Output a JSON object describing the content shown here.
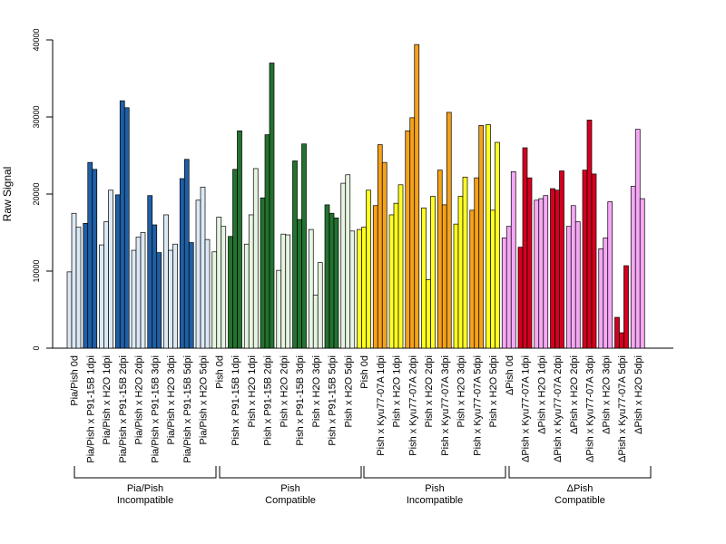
{
  "chart_data": {
    "type": "bar",
    "ylabel": "Raw Signal",
    "ylim": [
      0,
      40000
    ],
    "yticks": [
      "0",
      "10000",
      "20000",
      "30000",
      "40000"
    ],
    "categories": [
      "Pia/Pish 0d",
      "Pia/Pish x P91-15B 1dpi",
      "Pia/Pish x H2O 1dpi",
      "Pia/Pish x P91-15B 2dpi",
      "Pia/Pish x H2O 2dpi",
      "Pia/Pish x P91-15B 3dpi",
      "Pia/Pish x H2O 3dpi",
      "Pia/Pish x P91-15B 5dpi",
      "Pia/Pish x H2O 5dpi",
      "Pish 0d",
      "Pish x P91-15B 1dpi",
      "Pish x H2O 1dpi",
      "Pish x P91-15B 2dpi",
      "Pish x H2O 2dpi",
      "Pish x P91-15B 3dpi",
      "Pish x H2O 3dpi",
      "Pish x P91-15B 5dpi",
      "Pish x H2O 5dpi",
      "Pish 0d",
      "Pish x Kyu77-07A 1dpi",
      "Pish x H2O 1dpi",
      "Pish x Kyu77-07A 2dpi",
      "Pish x H2O 2dpi",
      "Pish x Kyu77-07A 3dpi",
      "Pish x H2O 3dpi",
      "Pish x Kyu77-07A 5dpi",
      "Pish x H2O 5dpi",
      "ΔPish 0d",
      "ΔPish x Kyu77-07A 1dpi",
      "ΔPish x H2O 1dpi",
      "ΔPish x Kyu77-07A 2dpi",
      "ΔPish x H2O 2dpi",
      "ΔPish x Kyu77-07A 3dpi",
      "ΔPish x H2O 3dpi",
      "ΔPish x Kyu77-07A 5dpi",
      "ΔPish x H2O 5dpi"
    ],
    "bar_colors": [
      "#dce9f5",
      "#1f5fa6",
      "#dce9f5",
      "#1f5fa6",
      "#dce9f5",
      "#1f5fa6",
      "#dce9f5",
      "#1f5fa6",
      "#dce9f5",
      "#e6f4e1",
      "#23722f",
      "#e6f4e1",
      "#23722f",
      "#e6f4e1",
      "#23722f",
      "#e6f4e1",
      "#23722f",
      "#e6f4e1",
      "#ffff22",
      "#f5a21b",
      "#ffff22",
      "#f5a21b",
      "#ffff22",
      "#f5a21b",
      "#ffff22",
      "#f5a21b",
      "#ffff22",
      "#f7a8f5",
      "#d4001f",
      "#f7a8f5",
      "#d4001f",
      "#f7a8f5",
      "#d4001f",
      "#f7a8f5",
      "#d4001f",
      "#f7a8f5"
    ],
    "values": [
      [
        9900,
        17500,
        15700
      ],
      [
        16200,
        24100,
        23200
      ],
      [
        13400,
        16400,
        20500
      ],
      [
        19900,
        32100,
        31200
      ],
      [
        12700,
        14400,
        15000
      ],
      [
        19800,
        16000,
        12400
      ],
      [
        17300,
        12700,
        13500
      ],
      [
        22000,
        24500,
        13700
      ],
      [
        19200,
        20900,
        14100
      ],
      [
        12500,
        17000,
        15800
      ],
      [
        14500,
        23200,
        28200
      ],
      [
        13500,
        17300,
        23300
      ],
      [
        19500,
        27700,
        37000
      ],
      [
        10100,
        14800,
        14700
      ],
      [
        24300,
        16700,
        26500
      ],
      [
        15400,
        6900,
        11100
      ],
      [
        18600,
        17500,
        16900
      ],
      [
        21400,
        22500,
        15200
      ],
      [
        15400,
        15700,
        20500
      ],
      [
        18500,
        26400,
        24100
      ],
      [
        17300,
        18800,
        21200
      ],
      [
        28200,
        29900,
        39400
      ],
      [
        18200,
        8900,
        19700
      ],
      [
        23100,
        18600,
        30600
      ],
      [
        16100,
        19700,
        22200
      ],
      [
        17900,
        22100,
        28900
      ],
      [
        29000,
        17900,
        26700
      ],
      [
        14300,
        15800,
        22900
      ],
      [
        13100,
        26000,
        22100
      ],
      [
        19200,
        19400,
        19800
      ],
      [
        20700,
        20500,
        23000
      ],
      [
        15800,
        18500,
        16400
      ],
      [
        23100,
        29600,
        22600
      ],
      [
        12900,
        14300,
        19000
      ],
      [
        4000,
        2000,
        10700
      ],
      [
        21000,
        28400,
        19400
      ]
    ],
    "groups": [
      {
        "line1": "Pia/Pish",
        "line2": "Incompatible"
      },
      {
        "line1": "Pish",
        "line2": "Compatible"
      },
      {
        "line1": "Pish",
        "line2": "Incompatible"
      },
      {
        "line1": "ΔPish",
        "line2": "Compatible"
      }
    ]
  }
}
